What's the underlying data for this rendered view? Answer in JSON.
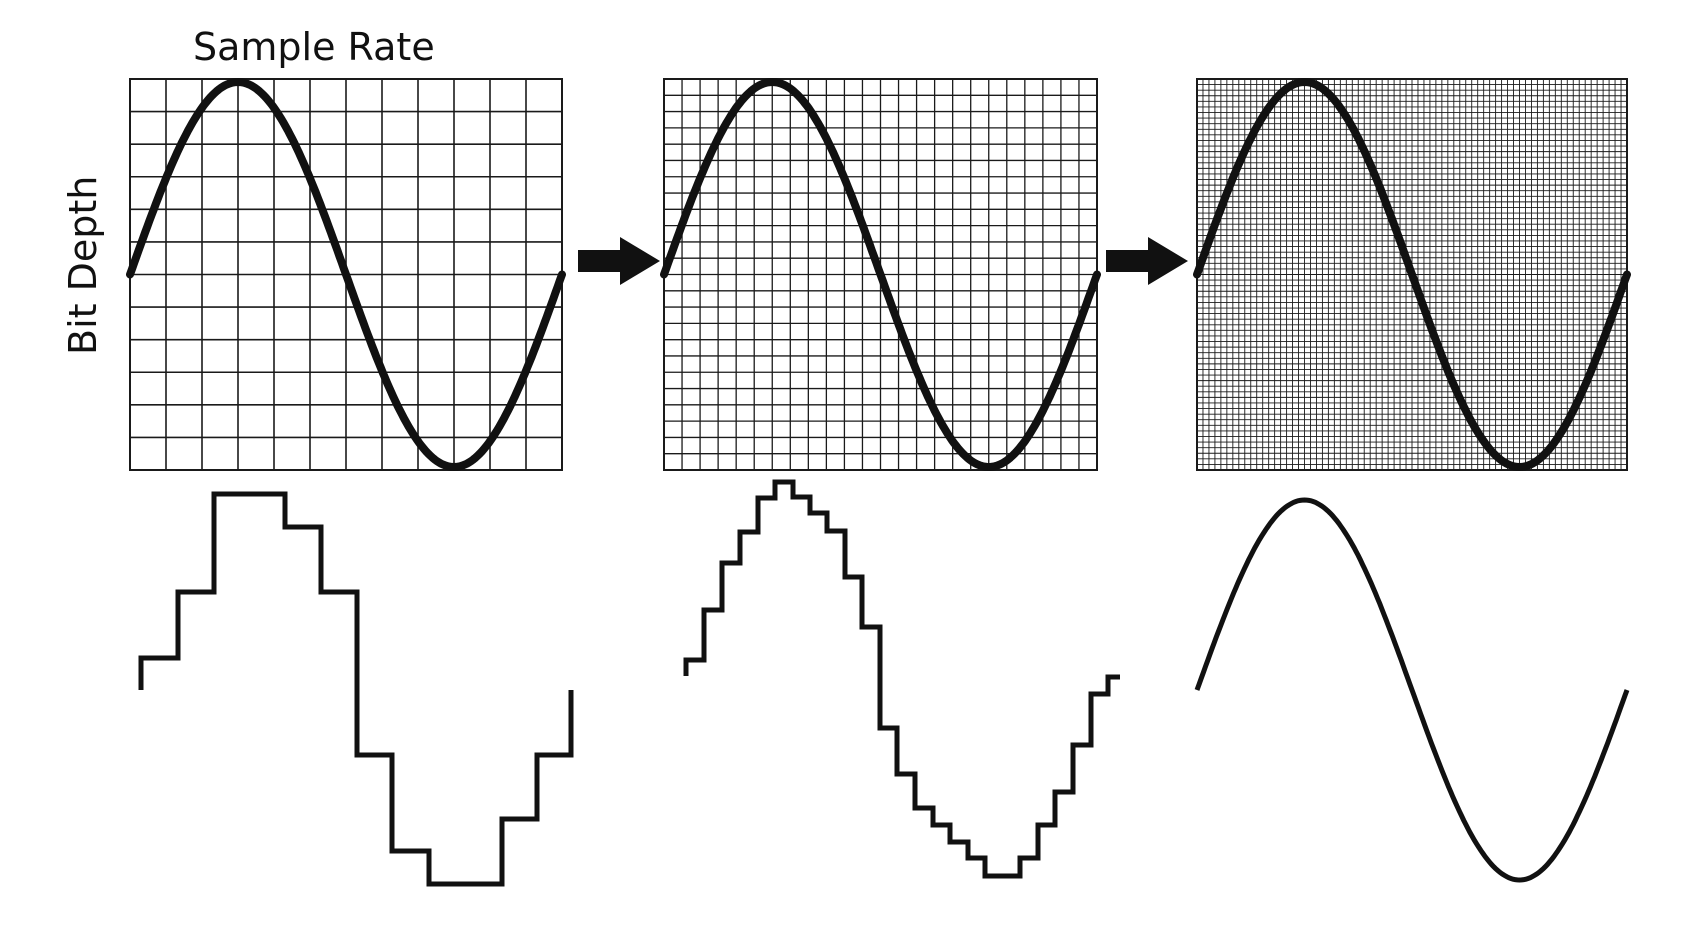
{
  "labels": {
    "sample_rate": "Sample Rate",
    "bit_depth": "Bit Depth"
  },
  "icons": {
    "arrow_1": "right-arrow-icon",
    "arrow_2": "right-arrow-icon"
  },
  "panels": [
    {
      "name": "low-resolution",
      "grid_columns": 12,
      "grid_rows": 12,
      "output_style": "coarse-steps"
    },
    {
      "name": "medium-resolution",
      "grid_columns": 24,
      "grid_rows": 24,
      "output_style": "fine-steps"
    },
    {
      "name": "high-resolution",
      "grid_columns": 72,
      "grid_rows": 70,
      "output_style": "smooth"
    }
  ],
  "colors": {
    "ink": "#111111",
    "background": "#ffffff"
  }
}
